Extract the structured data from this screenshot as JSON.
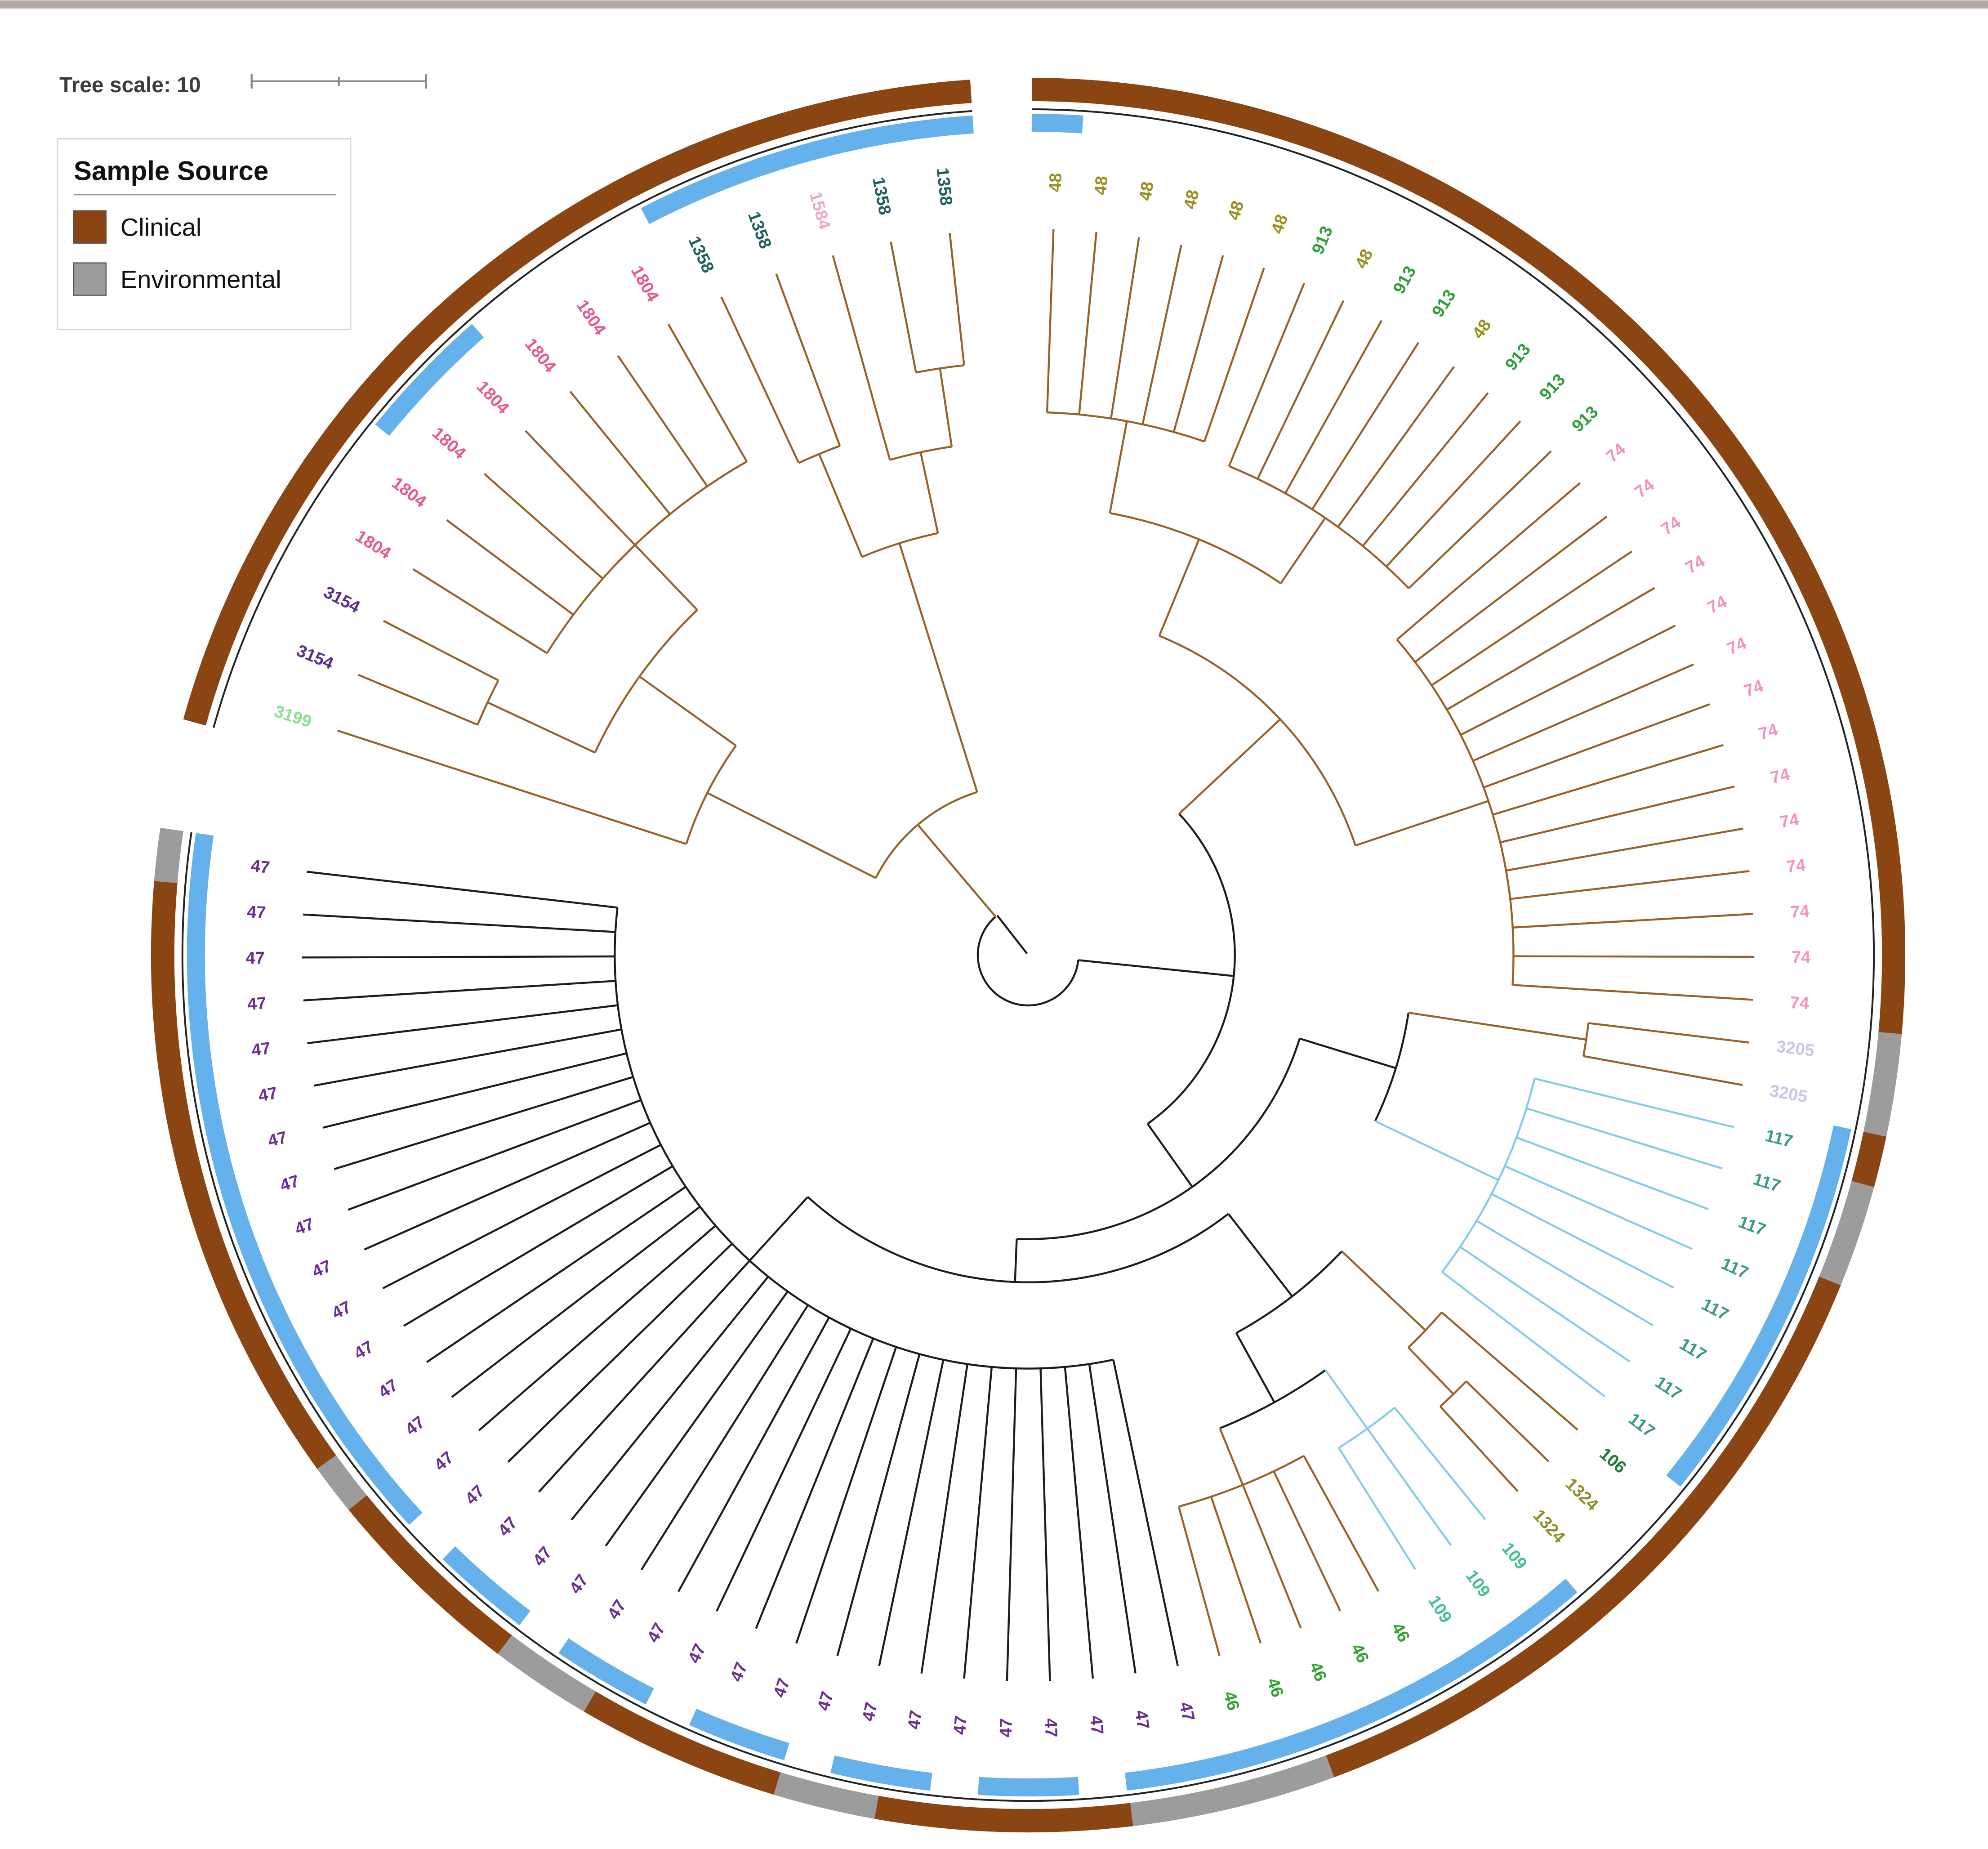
{
  "page": {
    "top_bar_color": "#b5a8a2",
    "background": "#ffffff"
  },
  "tree_scale": {
    "label": "Tree scale: 10",
    "value": 10
  },
  "legend": {
    "title": "Sample Source",
    "items": [
      {
        "label": "Clinical",
        "color": "#8B4513"
      },
      {
        "label": "Environmental",
        "color": "#9c9c9c"
      }
    ]
  },
  "chart_data": {
    "type": "circular_phylogenetic_tree",
    "title": "",
    "source_codes": {
      "C": "Clinical",
      "E": "Environmental"
    },
    "inner_ring_color": "#64b1ec",
    "branch_colors": {
      "bk": "#1c1c1c",
      "br": "#96622b",
      "bl": "#85cbe9"
    },
    "st_colors": {
      "48": "#9a8f1f",
      "913": "#2f9e3c",
      "74": "#f591bd",
      "3205": "#cfc3ee",
      "117": "#399b7e",
      "106": "#1d7a3a",
      "1324": "#8f8f2a",
      "109": "#46c18f",
      "46": "#31a331",
      "47": "#6b2d92",
      "3199": "#8ce08c",
      "3154": "#5a2d8a",
      "1804": "#e65c86",
      "1584": "#efa8c8",
      "1358": "#20605c"
    },
    "leaf_fields": [
      "st_label",
      "source_code",
      "inner_ring_highlight"
    ],
    "leaves": [
      [
        "48",
        "C",
        1
      ],
      [
        "48",
        "C",
        0
      ],
      [
        "48",
        "C",
        0
      ],
      [
        "48",
        "C",
        0
      ],
      [
        "48",
        "C",
        0
      ],
      [
        "48",
        "C",
        0
      ],
      [
        "913",
        "C",
        0
      ],
      [
        "48",
        "C",
        0
      ],
      [
        "913",
        "C",
        0
      ],
      [
        "913",
        "C",
        0
      ],
      [
        "48",
        "C",
        0
      ],
      [
        "913",
        "C",
        0
      ],
      [
        "913",
        "C",
        0
      ],
      [
        "913",
        "C",
        0
      ],
      [
        "74",
        "C",
        0
      ],
      [
        "74",
        "C",
        0
      ],
      [
        "74",
        "C",
        0
      ],
      [
        "74",
        "C",
        0
      ],
      [
        "74",
        "C",
        0
      ],
      [
        "74",
        "C",
        0
      ],
      [
        "74",
        "C",
        0
      ],
      [
        "74",
        "C",
        0
      ],
      [
        "74",
        "C",
        0
      ],
      [
        "74",
        "C",
        0
      ],
      [
        "74",
        "C",
        0
      ],
      [
        "74",
        "C",
        0
      ],
      [
        "74",
        "C",
        0
      ],
      [
        "74",
        "C",
        0
      ],
      [
        "3205",
        "E",
        0
      ],
      [
        "3205",
        "E",
        0
      ],
      [
        "117",
        "C",
        1
      ],
      [
        "117",
        "E",
        1
      ],
      [
        "117",
        "E",
        1
      ],
      [
        "117",
        "C",
        1
      ],
      [
        "117",
        "C",
        1
      ],
      [
        "117",
        "C",
        1
      ],
      [
        "117",
        "C",
        1
      ],
      [
        "117",
        "C",
        1
      ],
      [
        "106",
        "C",
        0
      ],
      [
        "1324",
        "C",
        0
      ],
      [
        "1324",
        "C",
        0
      ],
      [
        "109",
        "C",
        1
      ],
      [
        "109",
        "C",
        1
      ],
      [
        "109",
        "C",
        1
      ],
      [
        "46",
        "C",
        1
      ],
      [
        "46",
        "C",
        1
      ],
      [
        "46",
        "C",
        1
      ],
      [
        "46",
        "E",
        1
      ],
      [
        "46",
        "E",
        1
      ],
      [
        "47",
        "E",
        1
      ],
      [
        "47",
        "E",
        1
      ],
      [
        "47",
        "C",
        0
      ],
      [
        "47",
        "C",
        1
      ],
      [
        "47",
        "C",
        1
      ],
      [
        "47",
        "C",
        0
      ],
      [
        "47",
        "C",
        1
      ],
      [
        "47",
        "E",
        1
      ],
      [
        "47",
        "E",
        0
      ],
      [
        "47",
        "C",
        1
      ],
      [
        "47",
        "C",
        1
      ],
      [
        "47",
        "C",
        0
      ],
      [
        "47",
        "C",
        1
      ],
      [
        "47",
        "E",
        1
      ],
      [
        "47",
        "E",
        0
      ],
      [
        "47",
        "C",
        1
      ],
      [
        "47",
        "C",
        1
      ],
      [
        "47",
        "C",
        0
      ],
      [
        "47",
        "C",
        1
      ],
      [
        "47",
        "E",
        1
      ],
      [
        "47",
        "C",
        1
      ],
      [
        "47",
        "C",
        1
      ],
      [
        "47",
        "C",
        1
      ],
      [
        "47",
        "C",
        1
      ],
      [
        "47",
        "C",
        1
      ],
      [
        "47",
        "C",
        1
      ],
      [
        "47",
        "C",
        1
      ],
      [
        "47",
        "C",
        1
      ],
      [
        "47",
        "C",
        1
      ],
      [
        "47",
        "C",
        1
      ],
      [
        "47",
        "C",
        1
      ],
      [
        "47",
        "C",
        1
      ],
      [
        "47",
        "E",
        1
      ],
      [
        "3199",
        "C",
        0
      ],
      [
        "3154",
        "C",
        0
      ],
      [
        "3154",
        "C",
        0
      ],
      [
        "1804",
        "C",
        0
      ],
      [
        "1804",
        "C",
        0
      ],
      [
        "1804",
        "C",
        1
      ],
      [
        "1804",
        "C",
        1
      ],
      [
        "1804",
        "C",
        0
      ],
      [
        "1804",
        "C",
        0
      ],
      [
        "1804",
        "C",
        0
      ],
      [
        "1358",
        "C",
        1
      ],
      [
        "1358",
        "C",
        1
      ],
      [
        "1584",
        "C",
        1
      ],
      [
        "1358",
        "C",
        1
      ],
      [
        "1358",
        "C",
        1
      ]
    ],
    "tree": {
      "r": 28,
      "c": "bk",
      "stem": 322,
      "ch": [
        {
          "r": 95,
          "c": "br",
          "ch": [
            {
              "r": 240,
              "c": "br",
              "ch": [
                {
                  "r": 302,
                  "c": "br",
                  "ch": [
                    93,
                    94
                  ]
                },
                {
                  "r": 286,
                  "c": "br",
                  "ch": [
                    95,
                    {
                      "r": 330,
                      "c": "br",
                      "ch": [
                        96,
                        97
                      ]
                    }
                  ]
                }
              ]
            },
            {
              "r": 200,
              "c": "br",
              "ch": [
                {
                  "r": 266,
                  "c": "br",
                  "ch": [
                    {
                      "r": 316,
                      "c": "br",
                      "ch": [
                        86,
                        87,
                        88,
                        89,
                        90,
                        91,
                        92
                      ]
                    },
                    {
                      "r": 332,
                      "c": "br",
                      "ch": [
                        84,
                        85
                      ]
                    }
                  ]
                },
                83
              ]
            }
          ]
        },
        {
          "r": 115,
          "c": "bk",
          "ch": [
            {
              "r": 192,
              "c": "br",
              "ch": [
                {
                  "r": 250,
                  "c": "br",
                  "ch": [
                    {
                      "r": 302,
                      "c": "br",
                      "ch": [
                        1,
                        2,
                        3,
                        4,
                        5,
                        6
                      ]
                    },
                    {
                      "r": 294,
                      "c": "br",
                      "ch": [
                        7,
                        8,
                        9,
                        10,
                        11,
                        12,
                        13,
                        14
                      ]
                    }
                  ]
                },
                {
                  "r": 270,
                  "c": "br",
                  "ch": [
                    15,
                    16,
                    17,
                    18,
                    19,
                    20,
                    21,
                    22,
                    23,
                    24,
                    25,
                    26,
                    27,
                    28
                  ]
                }
              ]
            },
            {
              "r": 158,
              "c": "bk",
              "ch": [
                {
                  "r": 214,
                  "c": "bk",
                  "ch": [
                    {
                      "r": 314,
                      "c": "br",
                      "ch": [
                        29,
                        30
                      ]
                    },
                    {
                      "r": 290,
                      "c": "bl",
                      "ch": [
                        31,
                        32,
                        33,
                        34,
                        35,
                        36,
                        37,
                        38
                      ]
                    }
                  ]
                },
                {
                  "r": 182,
                  "c": "bk",
                  "ch": [
                    {
                      "r": 240,
                      "c": "bk",
                      "ch": [
                        {
                          "r": 304,
                          "c": "br",
                          "ch": [
                            39,
                            {
                              "r": 340,
                              "c": "br",
                              "ch": [
                                40,
                                41
                              ]
                            }
                          ]
                        },
                        {
                          "r": 284,
                          "c": "bk",
                          "ch": [
                            {
                              "r": 324,
                              "c": "bl",
                              "ch": [
                                42,
                                43,
                                44
                              ]
                            },
                            {
                              "r": 318,
                              "c": "br",
                              "ch": [
                                45,
                                46,
                                47,
                                48,
                                49
                              ]
                            }
                          ]
                        }
                      ]
                    },
                    {
                      "r": 230,
                      "c": "bk",
                      "ch": [
                        50,
                        51,
                        52,
                        53,
                        54,
                        55,
                        56,
                        57,
                        58,
                        59,
                        60,
                        61,
                        62,
                        63,
                        64,
                        65,
                        66,
                        67,
                        68,
                        69,
                        70,
                        71,
                        72,
                        73,
                        74,
                        75,
                        76,
                        77,
                        78,
                        79,
                        80,
                        81,
                        82
                      ]
                    }
                  ]
                }
              ]
            }
          ]
        }
      ]
    }
  }
}
